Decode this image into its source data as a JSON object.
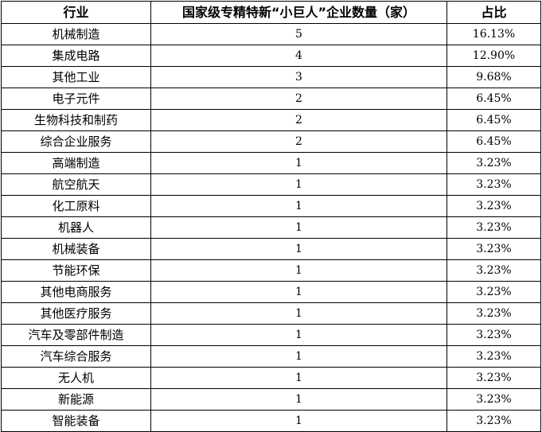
{
  "headers": [
    "行业",
    "国家级专精特新“小巨人”企业数量（家）",
    "占比"
  ],
  "rows": [
    {
      "industry": "机械制造",
      "count": "5",
      "share": "16.13%"
    },
    {
      "industry": "集成电路",
      "count": "4",
      "share": "12.90%"
    },
    {
      "industry": "其他工业",
      "count": "3",
      "share": "9.68%"
    },
    {
      "industry": "电子元件",
      "count": "2",
      "share": "6.45%"
    },
    {
      "industry": "生物科技和制药",
      "count": "2",
      "share": "6.45%"
    },
    {
      "industry": "综合企业服务",
      "count": "2",
      "share": "6.45%"
    },
    {
      "industry": "高端制造",
      "count": "1",
      "share": "3.23%"
    },
    {
      "industry": "航空航天",
      "count": "1",
      "share": "3.23%"
    },
    {
      "industry": "化工原料",
      "count": "1",
      "share": "3.23%"
    },
    {
      "industry": "机器人",
      "count": "1",
      "share": "3.23%"
    },
    {
      "industry": "机械装备",
      "count": "1",
      "share": "3.23%"
    },
    {
      "industry": "节能环保",
      "count": "1",
      "share": "3.23%"
    },
    {
      "industry": "其他电商服务",
      "count": "1",
      "share": "3.23%"
    },
    {
      "industry": "其他医疗服务",
      "count": "1",
      "share": "3.23%"
    },
    {
      "industry": "汽车及零部件制造",
      "count": "1",
      "share": "3.23%"
    },
    {
      "industry": "汽车综合服务",
      "count": "1",
      "share": "3.23%"
    },
    {
      "industry": "无人机",
      "count": "1",
      "share": "3.23%"
    },
    {
      "industry": "新能源",
      "count": "1",
      "share": "3.23%"
    },
    {
      "industry": "智能装备",
      "count": "1",
      "share": "3.23%"
    }
  ]
}
